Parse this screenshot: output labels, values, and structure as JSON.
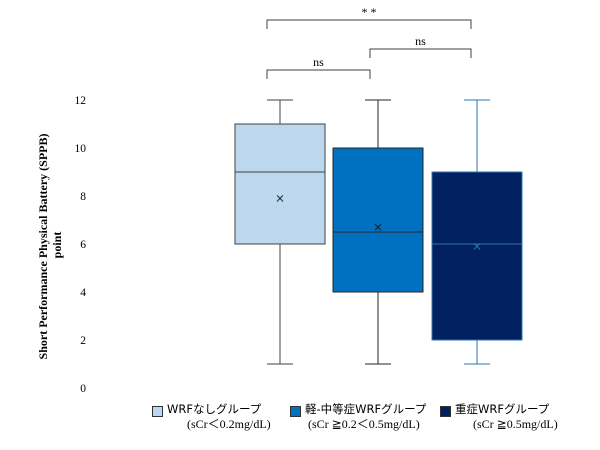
{
  "chart_data": {
    "type": "box",
    "ylabel_line1": "Short  Performance Physical Battery (SPPB)",
    "ylabel_line2": "point",
    "ylim": [
      0,
      12
    ],
    "yticks": [
      0,
      2,
      4,
      6,
      8,
      10,
      12
    ],
    "grid": false,
    "legend_position": "bottom",
    "series": [
      {
        "name_line1": "WRFなしグループ",
        "name_line2": "(sCr＜0.2mg/dL)",
        "color": "#BDD7EE",
        "edge": "#404040",
        "min": 1,
        "q1": 6,
        "median": 9,
        "q3": 11,
        "max": 12,
        "mean": 7.9
      },
      {
        "name_line1": "軽-中等症WRFグループ",
        "name_line2": "(sCr ≧0.2＜0.5mg/dL)",
        "color": "#0070C0",
        "edge": "#262626",
        "min": 1,
        "q1": 4,
        "median": 6.5,
        "q3": 10,
        "max": 12,
        "mean": 6.7
      },
      {
        "name_line1": "重症WRFグループ",
        "name_line2": "(sCr ≧0.5mg/dL)",
        "color": "#002060",
        "edge": "#2E75B6",
        "min": 1,
        "q1": 2,
        "median": 6,
        "q3": 9,
        "max": 12,
        "mean": 5.9
      }
    ],
    "significance": [
      {
        "from": 0,
        "to": 2,
        "label": "* *",
        "level": 3
      },
      {
        "from": 1,
        "to": 2,
        "label": "ns",
        "level": 2
      },
      {
        "from": 0,
        "to": 1,
        "label": "ns",
        "level": 1
      }
    ]
  }
}
